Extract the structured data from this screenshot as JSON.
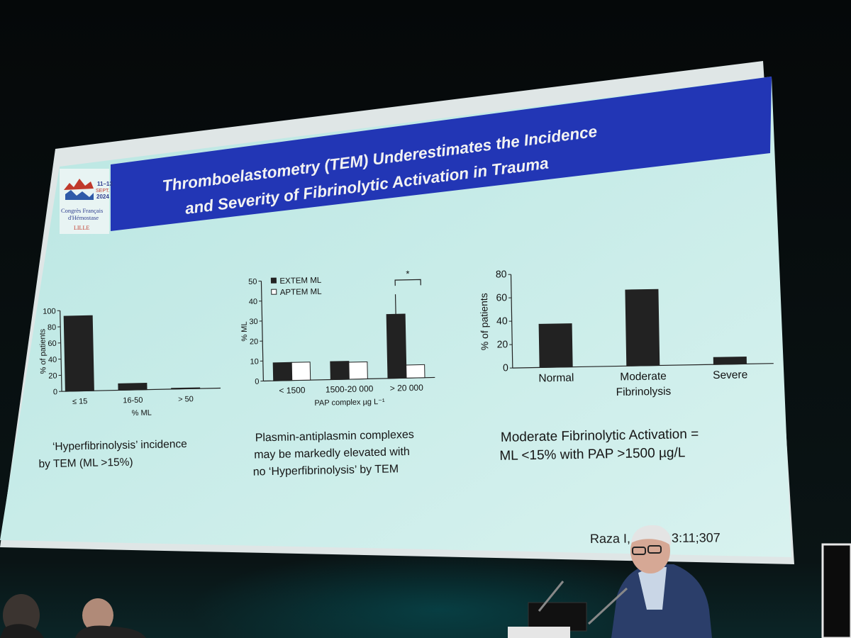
{
  "slide": {
    "title_line1": "Thromboelastometry (TEM) Underestimates the Incidence",
    "title_line2": "and Severity of Fibrinolytic Activation in Trauma",
    "logo": {
      "dates": "11–13",
      "month": "SEPT.",
      "year": "2024",
      "name1": "Congrès Français",
      "name2": "d'Hémostase",
      "city": "LILLE"
    },
    "citation": "Raza I, … 2013:11;307",
    "captions": {
      "left": [
        "‘Hyperfibrinolysis’ incidence",
        "by TEM (ML >15%)"
      ],
      "middle": [
        "Plasmin-antiplasmin complexes",
        "may be markedly elevated with",
        "no ‘Hyperfibrinolysis’ by TEM"
      ],
      "right": [
        "Moderate Fibrinolytic Activation =",
        "ML <15% with PAP >1500 µg/L"
      ]
    }
  },
  "chart_data": [
    {
      "type": "bar",
      "categories": [
        "≤ 15",
        "16-50",
        "> 50"
      ],
      "values": [
        93,
        8,
        1
      ],
      "xlabel": "% ML",
      "ylabel": "% of patients",
      "ylim": [
        0,
        100
      ],
      "yticks": [
        "0",
        "20",
        "40",
        "60",
        "80",
        "100"
      ]
    },
    {
      "type": "bar",
      "categories": [
        "< 1500",
        "1500-20 000",
        "> 20 000"
      ],
      "series": [
        {
          "name": "EXTEM ML",
          "values": [
            9,
            9,
            32
          ],
          "error": [
            0,
            0,
            10
          ],
          "color": "#222222"
        },
        {
          "name": "APTEM ML",
          "values": [
            9,
            8.5,
            6.5
          ],
          "error": [
            0,
            0,
            0
          ],
          "color": "#ffffff"
        }
      ],
      "xlabel": "PAP complex µg L⁻¹",
      "ylabel": "% ML",
      "ylim": [
        0,
        50
      ],
      "yticks": [
        "0",
        "10",
        "20",
        "30",
        "40",
        "50"
      ],
      "annotation": "*",
      "legend": "top-left"
    },
    {
      "type": "bar",
      "categories": [
        "Normal",
        "Moderate\nFibrinolysis",
        "Severe"
      ],
      "values": [
        37,
        65,
        6
      ],
      "ylabel": "% of patients",
      "ylim": [
        0,
        80
      ],
      "yticks": [
        "0",
        "20",
        "40",
        "60",
        "80"
      ]
    }
  ]
}
